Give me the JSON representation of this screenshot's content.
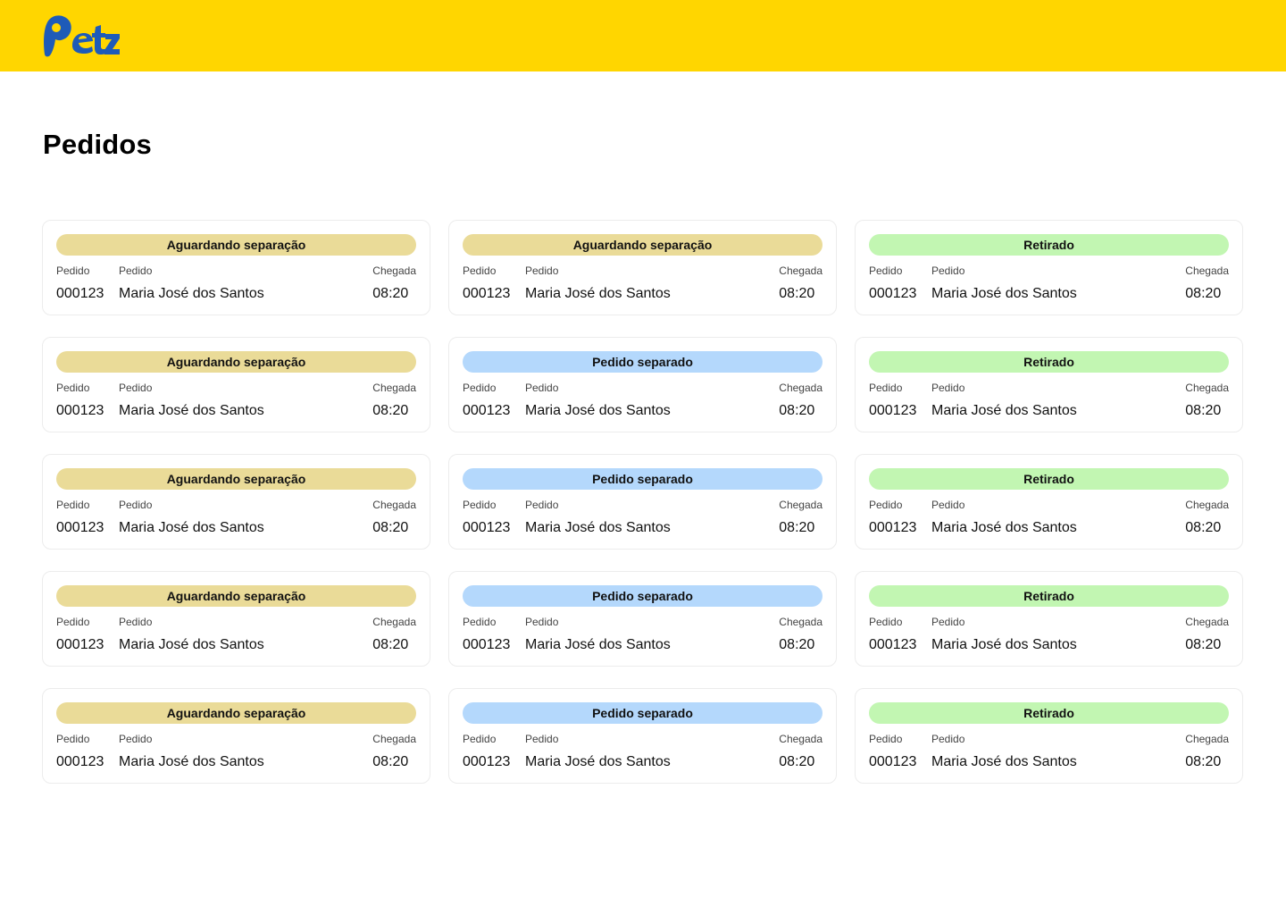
{
  "brand": {
    "name": "Petz",
    "accent": "#FFD600",
    "logo_color": "#1E5BB8"
  },
  "page": {
    "title": "Pedidos"
  },
  "labels": {
    "order": "Pedido",
    "customer": "Pedido",
    "arrival": "Chegada"
  },
  "status_colors": {
    "aguardando": "#EADB98",
    "separado": "#B4D8FC",
    "retirado": "#C2F6B2"
  },
  "orders": [
    {
      "status": "Aguardando separação",
      "status_key": "aguardando",
      "number": "000123",
      "customer": "Maria José dos Santos",
      "arrival": "08:20"
    },
    {
      "status": "Aguardando separação",
      "status_key": "aguardando",
      "number": "000123",
      "customer": "Maria José dos Santos",
      "arrival": "08:20"
    },
    {
      "status": "Retirado",
      "status_key": "retirado",
      "number": "000123",
      "customer": "Maria José dos Santos",
      "arrival": "08:20"
    },
    {
      "status": "Aguardando separação",
      "status_key": "aguardando",
      "number": "000123",
      "customer": "Maria José dos Santos",
      "arrival": "08:20"
    },
    {
      "status": "Pedido separado",
      "status_key": "separado",
      "number": "000123",
      "customer": "Maria José dos Santos",
      "arrival": "08:20"
    },
    {
      "status": "Retirado",
      "status_key": "retirado",
      "number": "000123",
      "customer": "Maria José dos Santos",
      "arrival": "08:20"
    },
    {
      "status": "Aguardando separação",
      "status_key": "aguardando",
      "number": "000123",
      "customer": "Maria José dos Santos",
      "arrival": "08:20"
    },
    {
      "status": "Pedido separado",
      "status_key": "separado",
      "number": "000123",
      "customer": "Maria José dos Santos",
      "arrival": "08:20"
    },
    {
      "status": "Retirado",
      "status_key": "retirado",
      "number": "000123",
      "customer": "Maria José dos Santos",
      "arrival": "08:20"
    },
    {
      "status": "Aguardando separação",
      "status_key": "aguardando",
      "number": "000123",
      "customer": "Maria José dos Santos",
      "arrival": "08:20"
    },
    {
      "status": "Pedido separado",
      "status_key": "separado",
      "number": "000123",
      "customer": "Maria José dos Santos",
      "arrival": "08:20"
    },
    {
      "status": "Retirado",
      "status_key": "retirado",
      "number": "000123",
      "customer": "Maria José dos Santos",
      "arrival": "08:20"
    },
    {
      "status": "Aguardando separação",
      "status_key": "aguardando",
      "number": "000123",
      "customer": "Maria José dos Santos",
      "arrival": "08:20"
    },
    {
      "status": "Pedido separado",
      "status_key": "separado",
      "number": "000123",
      "customer": "Maria José dos Santos",
      "arrival": "08:20"
    },
    {
      "status": "Retirado",
      "status_key": "retirado",
      "number": "000123",
      "customer": "Maria José dos Santos",
      "arrival": "08:20"
    }
  ]
}
